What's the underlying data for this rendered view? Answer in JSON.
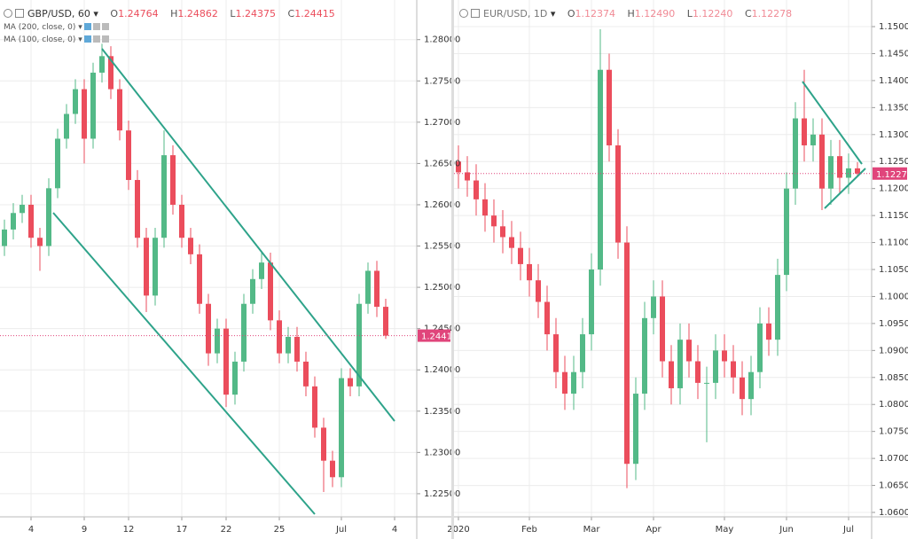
{
  "chart_data": [
    {
      "type": "candlestick",
      "title": "GBP/USD, 60",
      "ohlc_labels": [
        {
          "key": "O",
          "value": "1.24764"
        },
        {
          "key": "H",
          "value": "1.24862"
        },
        {
          "key": "L",
          "value": "1.24375"
        },
        {
          "key": "C",
          "value": "1.24415"
        }
      ],
      "indicators": [
        "MA (200, close, 0)",
        "MA (100, close, 0)"
      ],
      "up_color": "#53b987",
      "down_color": "#eb4d5c",
      "last_price_color": "#e0457b",
      "grid": true,
      "categories": [
        null,
        null,
        null,
        "4",
        null,
        null,
        null,
        null,
        null,
        "9",
        null,
        null,
        null,
        null,
        "12",
        null,
        null,
        null,
        null,
        null,
        "17",
        null,
        null,
        null,
        null,
        "22",
        null,
        null,
        null,
        null,
        null,
        "25",
        null,
        null,
        null,
        null,
        null,
        null,
        "Jul",
        null,
        null,
        null,
        null,
        null,
        "4"
      ],
      "series": [
        {
          "open": [
            1.255,
            1.257,
            1.259,
            1.26,
            1.256,
            1.255,
            1.262,
            1.268,
            1.271,
            1.274,
            1.268,
            1.276,
            1.278,
            1.274,
            1.269,
            1.263,
            1.256,
            1.249,
            1.256,
            1.266,
            1.26,
            1.256,
            1.254,
            1.248,
            1.242,
            1.245,
            1.237,
            1.241,
            1.248,
            1.251,
            1.253,
            1.246,
            1.242,
            1.244,
            1.241,
            1.238,
            1.233,
            1.229,
            1.227,
            1.239,
            1.238,
            1.248,
            1.252,
            1.24764,
            null
          ],
          "high": [
            1.2582,
            1.2602,
            1.2612,
            1.2612,
            1.2572,
            1.2632,
            1.2692,
            1.2722,
            1.2752,
            1.2752,
            1.2772,
            1.2795,
            1.2792,
            1.2752,
            1.2702,
            1.2642,
            1.2572,
            1.2572,
            1.269,
            1.2672,
            1.2612,
            1.2572,
            1.2552,
            1.2492,
            1.2462,
            1.2462,
            1.2422,
            1.2492,
            1.2522,
            1.2542,
            1.2542,
            1.2472,
            1.2452,
            1.2452,
            1.2422,
            1.2392,
            1.2342,
            1.2302,
            1.2402,
            1.2402,
            1.2492,
            1.253,
            1.2532,
            1.24862,
            null
          ],
          "low": [
            1.2538,
            1.2558,
            1.2578,
            1.2548,
            1.252,
            1.2538,
            1.2608,
            1.2668,
            1.2698,
            1.265,
            1.2668,
            1.2748,
            1.2728,
            1.2678,
            1.2618,
            1.2548,
            1.247,
            1.2478,
            1.2548,
            1.2588,
            1.2548,
            1.2528,
            1.2468,
            1.2405,
            1.2408,
            1.2355,
            1.2358,
            1.2398,
            1.2468,
            1.2498,
            1.2448,
            1.2408,
            1.2408,
            1.2398,
            1.2368,
            1.2318,
            1.2252,
            1.2258,
            1.2258,
            1.2368,
            1.2368,
            1.2468,
            1.2464,
            1.24375,
            null
          ],
          "close": [
            1.257,
            1.259,
            1.26,
            1.256,
            1.255,
            1.262,
            1.268,
            1.271,
            1.274,
            1.268,
            1.276,
            1.278,
            1.274,
            1.269,
            1.263,
            1.256,
            1.249,
            1.256,
            1.266,
            1.26,
            1.256,
            1.254,
            1.248,
            1.242,
            1.245,
            1.237,
            1.241,
            1.248,
            1.251,
            1.253,
            1.246,
            1.242,
            1.244,
            1.241,
            1.238,
            1.233,
            1.229,
            1.227,
            1.239,
            1.238,
            1.248,
            1.252,
            1.24764,
            1.24415,
            null
          ]
        }
      ],
      "ylim": [
        1.2222,
        1.2848
      ],
      "yticks": [
        {
          "value": 1.225,
          "label": "1.22500"
        },
        {
          "value": 1.23,
          "label": "1.23000"
        },
        {
          "value": 1.235,
          "label": "1.23500"
        },
        {
          "value": 1.24,
          "label": "1.24000"
        },
        {
          "value": 1.245,
          "label": "1.24500"
        },
        {
          "value": 1.25,
          "label": "1.25000"
        },
        {
          "value": 1.255,
          "label": "1.25500"
        },
        {
          "value": 1.26,
          "label": "1.26000"
        },
        {
          "value": 1.265,
          "label": "1.26500"
        },
        {
          "value": 1.27,
          "label": "1.27000"
        },
        {
          "value": 1.275,
          "label": "1.27500"
        },
        {
          "value": 1.28,
          "label": "1.28000"
        }
      ]
    },
    {
      "type": "candlestick",
      "title": "EUR/USD, 1D",
      "ohlc_labels": [
        {
          "key": "O",
          "value": "1.12374"
        },
        {
          "key": "H",
          "value": "1.12490"
        },
        {
          "key": "L",
          "value": "1.12240"
        },
        {
          "key": "C",
          "value": "1.12278"
        }
      ],
      "up_color": "#53b987",
      "down_color": "#eb4d5c",
      "last_price_color": "#e0457b",
      "grid": true,
      "categories": [
        "2020",
        null,
        null,
        null,
        null,
        null,
        null,
        null,
        "Feb",
        null,
        null,
        null,
        null,
        null,
        null,
        "Mar",
        null,
        null,
        null,
        null,
        null,
        null,
        "Apr",
        null,
        null,
        null,
        null,
        null,
        null,
        null,
        "May",
        null,
        null,
        null,
        null,
        null,
        null,
        "Jun",
        null,
        null,
        null,
        null,
        null,
        null,
        "Jul",
        null,
        null
      ],
      "series": [
        {
          "open": [
            1.125,
            1.123,
            1.1215,
            1.118,
            1.115,
            1.113,
            1.111,
            1.109,
            1.106,
            1.103,
            1.099,
            1.093,
            1.086,
            1.082,
            1.086,
            1.093,
            1.105,
            1.142,
            1.128,
            1.11,
            1.069,
            1.082,
            1.096,
            1.1,
            1.088,
            1.083,
            1.092,
            1.088,
            1.084,
            1.084,
            1.09,
            1.088,
            1.085,
            1.081,
            1.086,
            1.095,
            1.092,
            1.104,
            1.12,
            1.133,
            1.128,
            1.13,
            1.12,
            1.126,
            1.122,
            1.12374,
            null
          ],
          "high": [
            1.128,
            1.126,
            1.1245,
            1.121,
            1.118,
            1.116,
            1.114,
            1.112,
            1.109,
            1.106,
            1.102,
            1.096,
            1.089,
            1.089,
            1.096,
            1.108,
            1.1495,
            1.145,
            1.131,
            1.113,
            1.085,
            1.099,
            1.103,
            1.103,
            1.091,
            1.095,
            1.095,
            1.091,
            1.087,
            1.093,
            1.093,
            1.091,
            1.088,
            1.089,
            1.098,
            1.098,
            1.107,
            1.123,
            1.136,
            1.142,
            1.133,
            1.133,
            1.129,
            1.129,
            1.1265,
            1.1249,
            null
          ],
          "low": [
            1.12,
            1.1185,
            1.115,
            1.112,
            1.11,
            1.108,
            1.106,
            1.103,
            1.1,
            1.096,
            1.09,
            1.083,
            1.079,
            1.079,
            1.083,
            1.09,
            1.102,
            1.125,
            1.107,
            1.0645,
            1.066,
            1.079,
            1.093,
            1.085,
            1.08,
            1.08,
            1.085,
            1.081,
            1.073,
            1.081,
            1.085,
            1.082,
            1.078,
            1.078,
            1.083,
            1.089,
            1.089,
            1.101,
            1.117,
            1.125,
            1.125,
            1.116,
            1.117,
            1.119,
            1.119,
            1.1224,
            null
          ],
          "close": [
            1.123,
            1.1215,
            1.118,
            1.115,
            1.113,
            1.111,
            1.109,
            1.106,
            1.103,
            1.099,
            1.093,
            1.086,
            1.082,
            1.086,
            1.093,
            1.105,
            1.142,
            1.128,
            1.11,
            1.069,
            1.082,
            1.096,
            1.1,
            1.088,
            1.083,
            1.092,
            1.088,
            1.084,
            1.084,
            1.09,
            1.088,
            1.085,
            1.081,
            1.086,
            1.095,
            1.092,
            1.104,
            1.12,
            1.133,
            1.128,
            1.13,
            1.12,
            1.126,
            1.122,
            1.12374,
            1.12278,
            null
          ]
        }
      ],
      "ylim": [
        1.05918,
        1.15493
      ],
      "yticks": [
        {
          "value": 1.06,
          "label": "1.06000"
        },
        {
          "value": 1.065,
          "label": "1.06500"
        },
        {
          "value": 1.07,
          "label": "1.07000"
        },
        {
          "value": 1.075,
          "label": "1.07500"
        },
        {
          "value": 1.08,
          "label": "1.08000"
        },
        {
          "value": 1.085,
          "label": "1.08500"
        },
        {
          "value": 1.09,
          "label": "1.09000"
        },
        {
          "value": 1.095,
          "label": "1.09500"
        },
        {
          "value": 1.1,
          "label": "1.10000"
        },
        {
          "value": 1.105,
          "label": "1.10500"
        },
        {
          "value": 1.11,
          "label": "1.11000"
        },
        {
          "value": 1.115,
          "label": "1.11500"
        },
        {
          "value": 1.12,
          "label": "1.12000"
        },
        {
          "value": 1.125,
          "label": "1.12500"
        },
        {
          "value": 1.13,
          "label": "1.13000"
        },
        {
          "value": 1.135,
          "label": "1.13500"
        },
        {
          "value": 1.14,
          "label": "1.14000"
        },
        {
          "value": 1.145,
          "label": "1.14500"
        },
        {
          "value": 1.15,
          "label": "1.15000"
        }
      ]
    }
  ]
}
